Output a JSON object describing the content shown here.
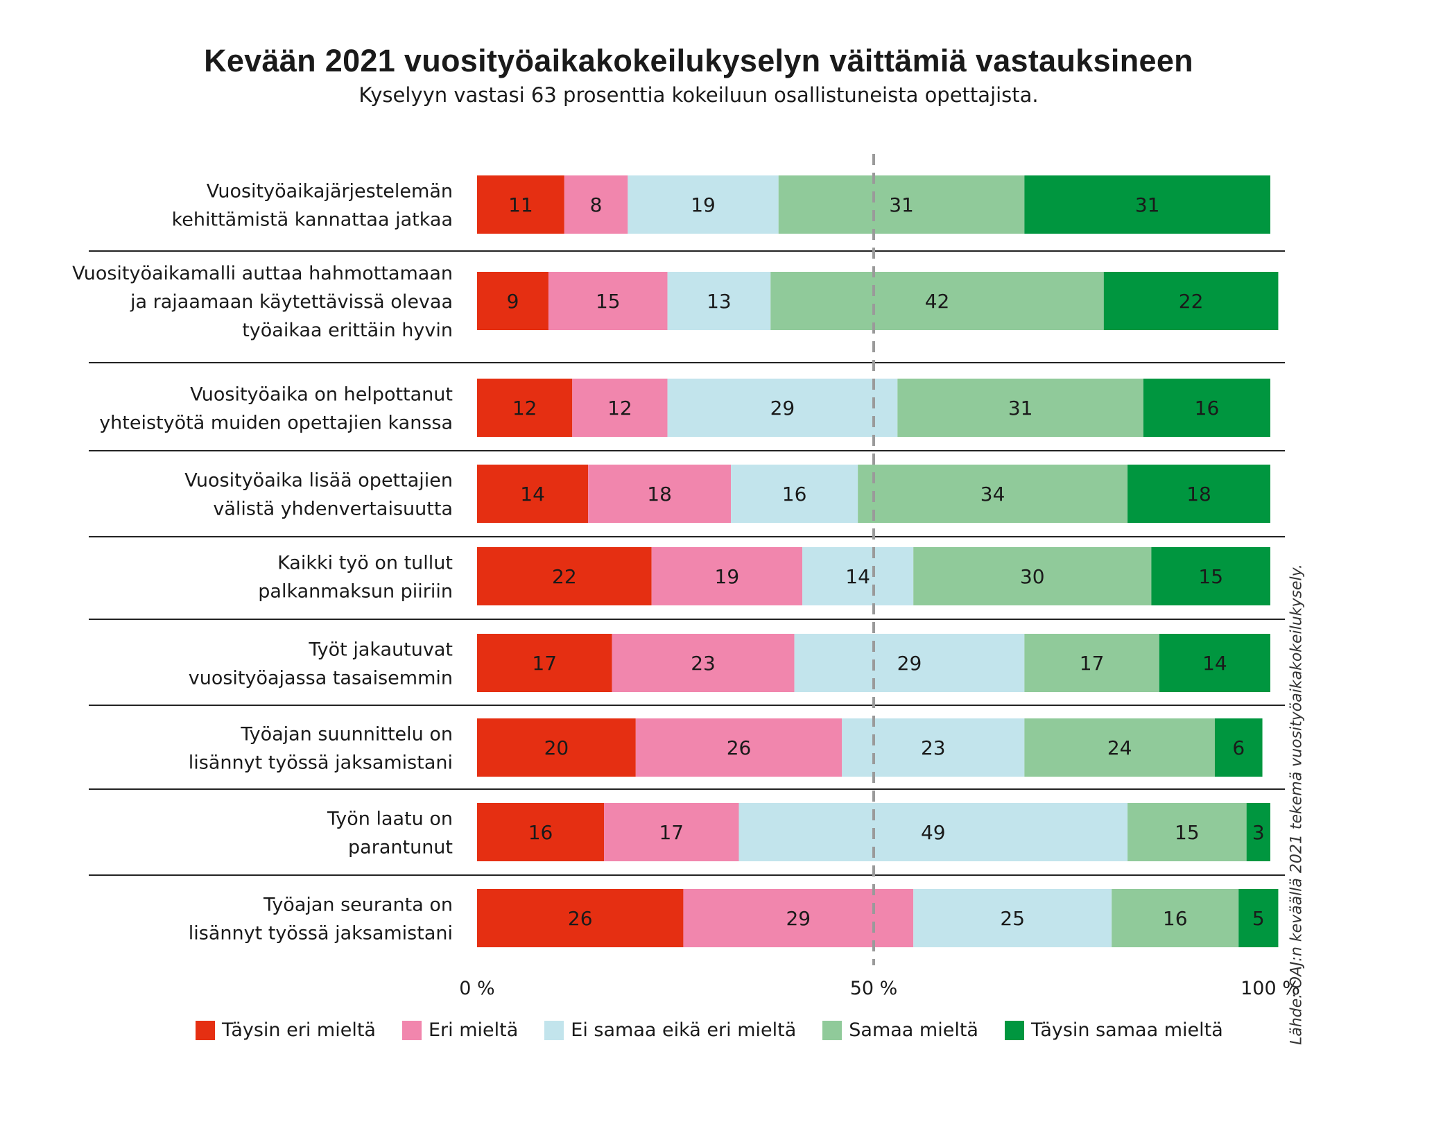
{
  "title": "Kevään 2021 vuosityöaikakokeilukyselyn väittämiä vastauksineen",
  "subtitle": "Kyselyyn vastasi 63 prosenttia kokeiluun osallistuneista opettajista.",
  "source": "Lähde: OAJ:n keväällä 2021 tekemä vuosityöaikakokeilukysely.",
  "chart_data": {
    "type": "bar",
    "orientation": "horizontal",
    "stacked": true,
    "unit": "%",
    "xlim": [
      0,
      100
    ],
    "x_ticks": [
      "0 %",
      "50 %",
      "100 %"
    ],
    "reference_line": {
      "x": 50,
      "style": "dashed"
    },
    "legend_position": "bottom",
    "categories": [
      [
        "Vuosityöaikajärjestelemän",
        "kehittämistä kannattaa jatkaa"
      ],
      [
        "Vuosityöaikamalli auttaa hahmottamaan",
        "ja rajaamaan käytettävissä olevaa",
        "työaikaa erittäin hyvin"
      ],
      [
        "Vuosityöaika on helpottanut",
        "yhteistyötä muiden opettajien kanssa"
      ],
      [
        "Vuosityöaika lisää opettajien",
        "välistä yhdenvertaisuutta"
      ],
      [
        "Kaikki työ on tullut",
        "palkanmaksun piiriin"
      ],
      [
        "Työt jakautuvat",
        "vuosityöajassa tasaisemmin"
      ],
      [
        "Työajan suunnittelu on",
        "lisännyt työssä jaksamistani"
      ],
      [
        "Työn laatu on",
        "parantunut"
      ],
      [
        "Työajan seuranta on",
        "lisännyt työssä jaksamistani"
      ]
    ],
    "series": [
      {
        "name": "Täysin eri mieltä",
        "color": "#e52f12",
        "values": [
          11,
          9,
          12,
          14,
          22,
          17,
          20,
          16,
          26
        ]
      },
      {
        "name": "Eri mieltä",
        "color": "#f186ad",
        "values": [
          8,
          15,
          12,
          18,
          19,
          23,
          26,
          17,
          29
        ]
      },
      {
        "name": "Ei samaa eikä eri mieltä",
        "color": "#c2e4ec",
        "values": [
          19,
          13,
          29,
          16,
          14,
          29,
          23,
          49,
          25
        ]
      },
      {
        "name": "Samaa mieltä",
        "color": "#90ca9a",
        "values": [
          31,
          42,
          31,
          34,
          30,
          17,
          24,
          15,
          16
        ]
      },
      {
        "name": "Täysin samaa mieltä",
        "color": "#00963f",
        "values": [
          31,
          22,
          16,
          18,
          15,
          14,
          6,
          3,
          5
        ]
      }
    ]
  }
}
